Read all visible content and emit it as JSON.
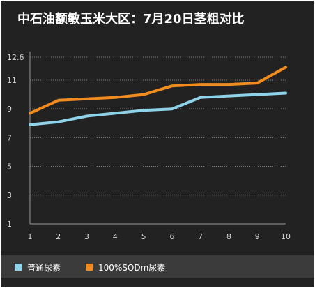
{
  "chart_data": {
    "type": "line",
    "title": "中石油额敏玉米大区：7月20日茎粗对比",
    "x": [
      1,
      2,
      3,
      4,
      5,
      6,
      7,
      8,
      9,
      10
    ],
    "y_ticks": [
      "1",
      "3",
      "5",
      "7",
      "9",
      "11",
      "12.6"
    ],
    "ylim": [
      1,
      12.6
    ],
    "grid": "horizontal dotted",
    "legend_position": "bottom",
    "xlabel": "",
    "ylabel": "",
    "series": [
      {
        "name": "普通尿素",
        "color": "#8fd3ea",
        "values": [
          7.9,
          8.1,
          8.5,
          8.7,
          8.9,
          9.0,
          9.8,
          9.9,
          10.0,
          10.1
        ]
      },
      {
        "name": "100%SODm尿素",
        "color": "#f28c1e",
        "values": [
          8.7,
          9.6,
          9.7,
          9.8,
          10.0,
          10.6,
          10.7,
          10.7,
          10.8,
          11.9
        ]
      }
    ]
  }
}
